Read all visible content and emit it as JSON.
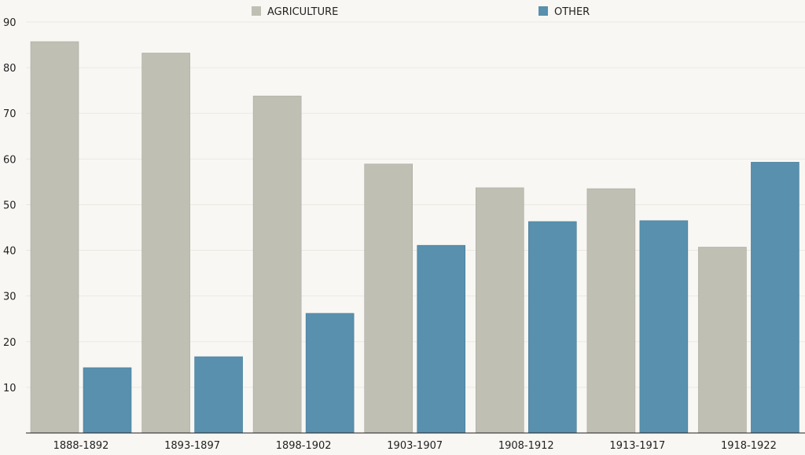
{
  "chart_data": {
    "type": "bar",
    "categories": [
      "1888-1892",
      "1893-1897",
      "1898-1902",
      "1903-1907",
      "1908-1912",
      "1913-1917",
      "1918-1922"
    ],
    "series": [
      {
        "name": "AGRICULTURE",
        "color": "#bfbfb4",
        "values": [
          85.7,
          83.2,
          73.8,
          58.9,
          53.7,
          53.5,
          40.7
        ]
      },
      {
        "name": "OTHER",
        "color": "#5890ae",
        "values": [
          14.3,
          16.7,
          26.2,
          41.1,
          46.3,
          46.5,
          59.3
        ]
      }
    ],
    "yticks": [
      10,
      20,
      30,
      40,
      50,
      60,
      70,
      80,
      90
    ],
    "ylim": [
      0,
      90
    ],
    "grid": true,
    "legend_position": "top"
  }
}
